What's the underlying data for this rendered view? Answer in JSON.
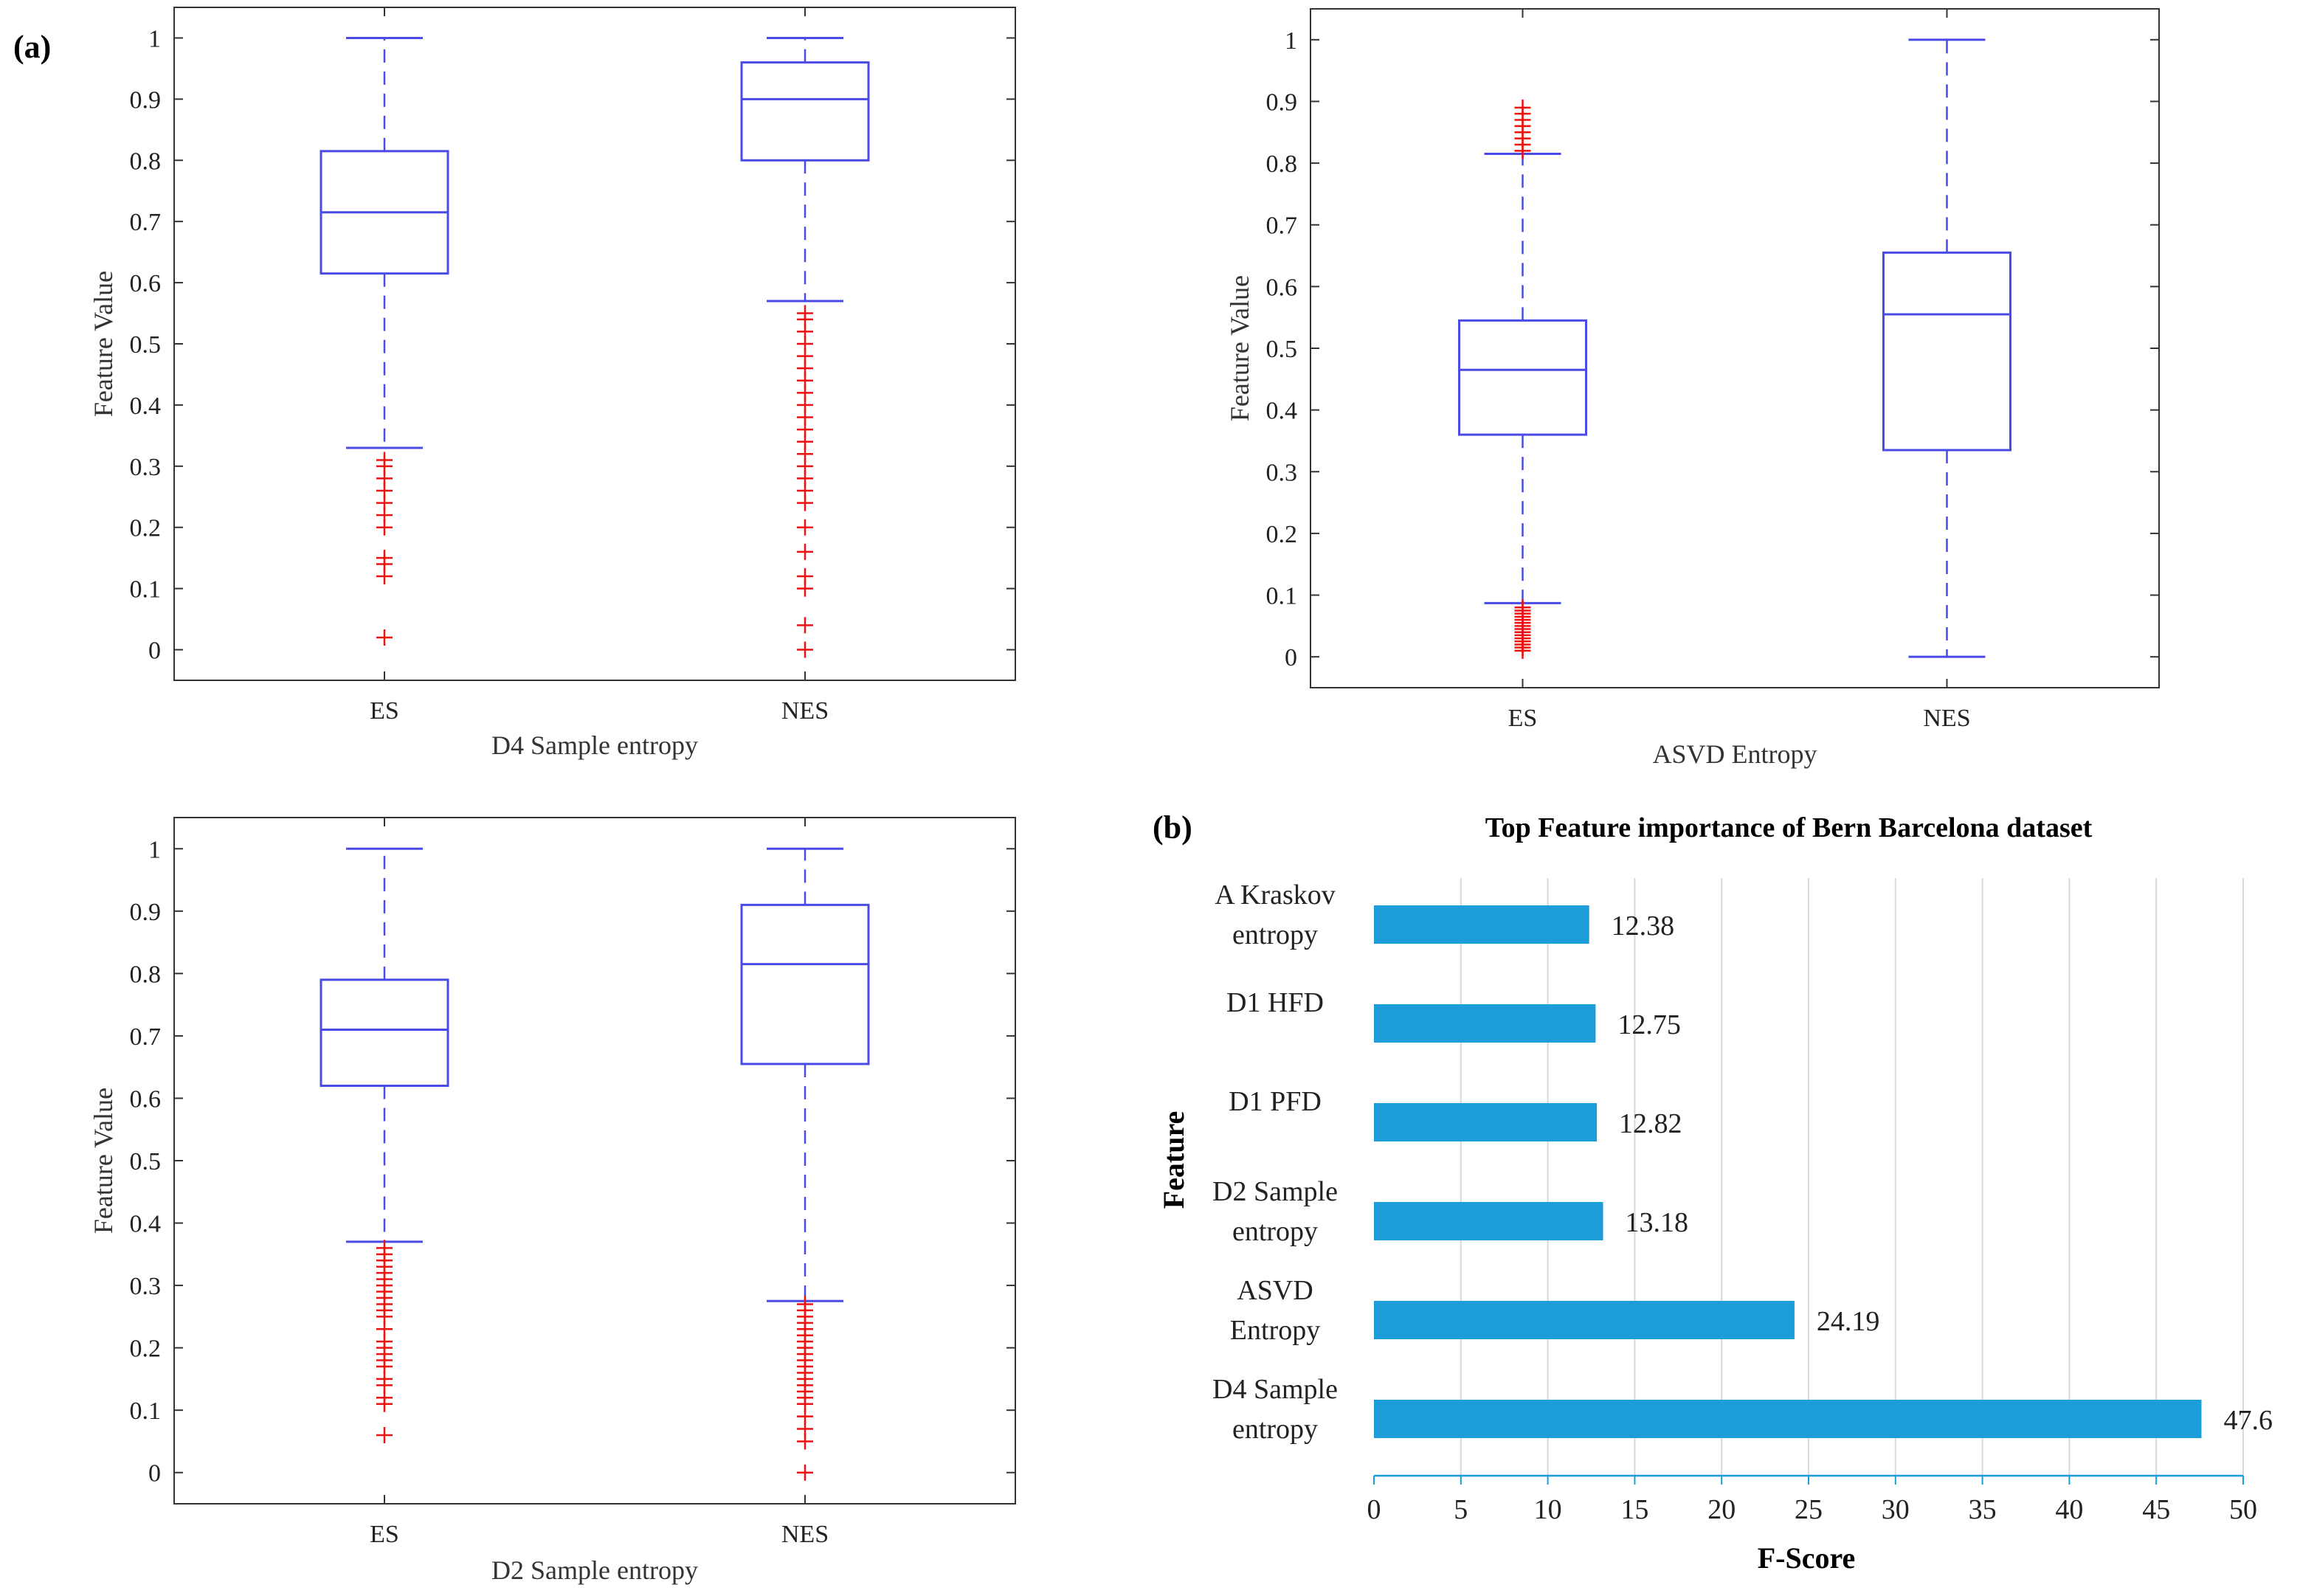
{
  "panel_labels": {
    "a": "(a)",
    "b": "(b)"
  },
  "colors": {
    "box": "#4a4ae6",
    "outlier": "#ee1111",
    "bar": "#1b9dd9",
    "grid": "#d9d9d9",
    "axis": "#555555"
  },
  "chart_data": [
    {
      "type": "box",
      "title": "",
      "xlabel": "D4 Sample entropy",
      "ylabel": "Feature Value",
      "ylim": [
        -0.05,
        1.05
      ],
      "yticks": [
        "0",
        "0.1",
        "0.2",
        "0.3",
        "0.4",
        "0.5",
        "0.6",
        "0.7",
        "0.8",
        "0.9",
        "1"
      ],
      "categories": [
        "ES",
        "NES"
      ],
      "boxes": [
        {
          "name": "ES",
          "whisker_low": 0.33,
          "q1": 0.615,
          "median": 0.715,
          "q3": 0.815,
          "whisker_high": 1.0,
          "outliers": [
            0.02,
            0.12,
            0.14,
            0.15,
            0.2,
            0.22,
            0.24,
            0.26,
            0.28,
            0.3,
            0.31
          ]
        },
        {
          "name": "NES",
          "whisker_low": 0.57,
          "q1": 0.8,
          "median": 0.9,
          "q3": 0.96,
          "whisker_high": 1.0,
          "outliers": [
            0.0,
            0.04,
            0.1,
            0.12,
            0.16,
            0.2,
            0.24,
            0.26,
            0.28,
            0.3,
            0.32,
            0.34,
            0.36,
            0.38,
            0.4,
            0.42,
            0.44,
            0.46,
            0.48,
            0.5,
            0.52,
            0.54,
            0.55
          ]
        }
      ]
    },
    {
      "type": "box",
      "title": "",
      "xlabel": "ASVD Entropy",
      "ylabel": "Feature Value",
      "ylim": [
        -0.05,
        1.05
      ],
      "yticks": [
        "0",
        "0.1",
        "0.2",
        "0.3",
        "0.4",
        "0.5",
        "0.6",
        "0.7",
        "0.8",
        "0.9",
        "1"
      ],
      "categories": [
        "ES",
        "NES"
      ],
      "boxes": [
        {
          "name": "ES",
          "whisker_low": 0.087,
          "q1": 0.36,
          "median": 0.465,
          "q3": 0.545,
          "whisker_high": 0.815,
          "outliers": [
            0.01,
            0.015,
            0.02,
            0.025,
            0.03,
            0.035,
            0.04,
            0.045,
            0.05,
            0.055,
            0.06,
            0.065,
            0.07,
            0.075,
            0.08,
            0.82,
            0.83,
            0.84,
            0.85,
            0.86,
            0.87,
            0.88,
            0.89
          ]
        },
        {
          "name": "NES",
          "whisker_low": 0.0,
          "q1": 0.335,
          "median": 0.555,
          "q3": 0.655,
          "whisker_high": 1.0,
          "outliers": []
        }
      ]
    },
    {
      "type": "box",
      "title": "",
      "xlabel": "D2 Sample entropy",
      "ylabel": "Feature Value",
      "ylim": [
        -0.05,
        1.05
      ],
      "yticks": [
        "0",
        "0.1",
        "0.2",
        "0.3",
        "0.4",
        "0.5",
        "0.6",
        "0.7",
        "0.8",
        "0.9",
        "1"
      ],
      "categories": [
        "ES",
        "NES"
      ],
      "boxes": [
        {
          "name": "ES",
          "whisker_low": 0.37,
          "q1": 0.62,
          "median": 0.71,
          "q3": 0.79,
          "whisker_high": 1.0,
          "outliers": [
            0.06,
            0.11,
            0.12,
            0.14,
            0.15,
            0.17,
            0.18,
            0.19,
            0.2,
            0.21,
            0.23,
            0.25,
            0.26,
            0.27,
            0.28,
            0.29,
            0.3,
            0.31,
            0.32,
            0.33,
            0.34,
            0.35,
            0.36
          ]
        },
        {
          "name": "NES",
          "whisker_low": 0.275,
          "q1": 0.655,
          "median": 0.815,
          "q3": 0.91,
          "whisker_high": 1.0,
          "outliers": [
            0.0,
            0.05,
            0.07,
            0.09,
            0.11,
            0.12,
            0.13,
            0.14,
            0.15,
            0.16,
            0.17,
            0.18,
            0.19,
            0.2,
            0.21,
            0.22,
            0.23,
            0.24,
            0.25,
            0.26,
            0.27
          ]
        }
      ]
    },
    {
      "type": "bar",
      "orientation": "horizontal",
      "title": "Top Feature importance of Bern Barcelona dataset",
      "xlabel": "F-Score",
      "ylabel": "Feature",
      "xlim": [
        0,
        50
      ],
      "xticks": [
        "0",
        "5",
        "10",
        "15",
        "20",
        "25",
        "30",
        "35",
        "40",
        "45",
        "50"
      ],
      "categories": [
        {
          "lines": [
            "A Kraskov",
            "entropy"
          ]
        },
        {
          "lines": [
            "D1 HFD"
          ]
        },
        {
          "lines": [
            "D1 PFD"
          ]
        },
        {
          "lines": [
            "D2 Sample",
            "entropy"
          ]
        },
        {
          "lines": [
            "ASVD",
            "Entropy"
          ]
        },
        {
          "lines": [
            "D4 Sample",
            "entropy"
          ]
        }
      ],
      "values": [
        12.38,
        12.75,
        12.82,
        13.18,
        24.19,
        47.6
      ],
      "value_labels": [
        "12.38",
        "12.75",
        "12.82",
        "13.18",
        "24.19",
        "47.6"
      ]
    }
  ]
}
